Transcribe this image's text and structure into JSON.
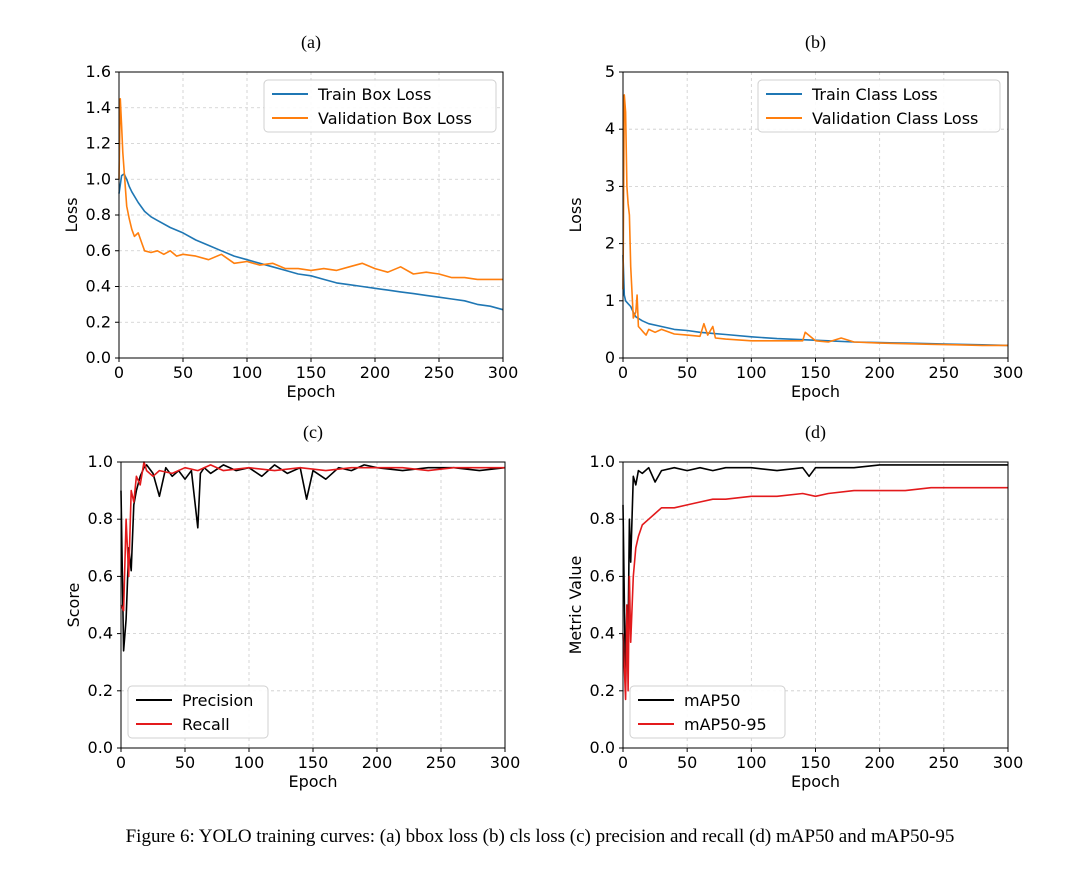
{
  "caption": "Figure 6: YOLO training curves: (a) bbox loss (b) cls loss (c) precision and recall (d) mAP50 and mAP50-95",
  "colors": {
    "blue": "#1f77b4",
    "orange": "#ff7f0e",
    "black": "#000000",
    "red": "#e31a1c",
    "grid": "#cccccc"
  },
  "chart_data": [
    {
      "id": "a",
      "type": "line",
      "title": "(a)",
      "xlabel": "Epoch",
      "ylabel": "Loss",
      "xlim": [
        0,
        300
      ],
      "ylim": [
        0,
        1.6
      ],
      "xticks": [
        0,
        50,
        100,
        150,
        200,
        250,
        300
      ],
      "xtick_labels": [
        "0",
        "50",
        "100",
        "150",
        "200",
        "250",
        "300"
      ],
      "yticks": [
        0,
        0.2,
        0.4,
        0.6,
        0.8,
        1.0,
        1.2,
        1.4,
        1.6
      ],
      "ytick_labels": [
        "0.0",
        "0.2",
        "0.4",
        "0.6",
        "0.8",
        "1.0",
        "1.2",
        "1.4",
        "1.6"
      ],
      "grid": true,
      "legend_position": "top-right",
      "series": [
        {
          "name": "Train Box Loss",
          "color": "blue",
          "x": [
            0,
            2,
            4,
            6,
            8,
            10,
            15,
            20,
            25,
            30,
            40,
            50,
            60,
            70,
            80,
            90,
            100,
            110,
            120,
            130,
            140,
            150,
            160,
            170,
            180,
            190,
            200,
            210,
            220,
            230,
            240,
            250,
            260,
            270,
            280,
            290,
            300
          ],
          "values": [
            0.92,
            1.02,
            1.03,
            1.0,
            0.96,
            0.93,
            0.87,
            0.82,
            0.79,
            0.77,
            0.73,
            0.7,
            0.66,
            0.63,
            0.6,
            0.57,
            0.55,
            0.53,
            0.51,
            0.49,
            0.47,
            0.46,
            0.44,
            0.42,
            0.41,
            0.4,
            0.39,
            0.38,
            0.37,
            0.36,
            0.35,
            0.34,
            0.33,
            0.32,
            0.3,
            0.29,
            0.27
          ]
        },
        {
          "name": "Validation Box Loss",
          "color": "orange",
          "x": [
            0,
            1,
            2,
            3,
            4,
            5,
            6,
            8,
            10,
            12,
            15,
            18,
            20,
            25,
            30,
            35,
            40,
            45,
            50,
            60,
            70,
            80,
            90,
            100,
            110,
            120,
            130,
            140,
            150,
            160,
            170,
            180,
            190,
            200,
            210,
            220,
            230,
            240,
            250,
            260,
            270,
            280,
            290,
            300
          ],
          "values": [
            1.0,
            1.45,
            1.3,
            1.15,
            1.05,
            0.95,
            0.85,
            0.78,
            0.72,
            0.68,
            0.7,
            0.64,
            0.6,
            0.59,
            0.6,
            0.58,
            0.6,
            0.57,
            0.58,
            0.57,
            0.55,
            0.58,
            0.53,
            0.54,
            0.52,
            0.53,
            0.5,
            0.5,
            0.49,
            0.5,
            0.49,
            0.51,
            0.53,
            0.5,
            0.48,
            0.51,
            0.47,
            0.48,
            0.47,
            0.45,
            0.45,
            0.44,
            0.44,
            0.44
          ]
        }
      ]
    },
    {
      "id": "b",
      "type": "line",
      "title": "(b)",
      "xlabel": "Epoch",
      "ylabel": "Loss",
      "xlim": [
        0,
        300
      ],
      "ylim": [
        0,
        5
      ],
      "xticks": [
        0,
        50,
        100,
        150,
        200,
        250,
        300
      ],
      "xtick_labels": [
        "0",
        "50",
        "100",
        "150",
        "200",
        "250",
        "300"
      ],
      "yticks": [
        0,
        1,
        2,
        3,
        4,
        5
      ],
      "ytick_labels": [
        "0",
        "1",
        "2",
        "3",
        "4",
        "5"
      ],
      "grid": true,
      "legend_position": "top-right",
      "series": [
        {
          "name": "Train Class Loss",
          "color": "blue",
          "x": [
            0,
            1,
            2,
            4,
            6,
            8,
            10,
            15,
            20,
            30,
            40,
            50,
            60,
            70,
            80,
            100,
            120,
            140,
            160,
            180,
            200,
            220,
            240,
            260,
            280,
            300
          ],
          "values": [
            1.8,
            1.1,
            1.0,
            0.95,
            0.9,
            0.8,
            0.72,
            0.65,
            0.6,
            0.55,
            0.5,
            0.48,
            0.45,
            0.43,
            0.41,
            0.37,
            0.34,
            0.32,
            0.3,
            0.28,
            0.27,
            0.26,
            0.25,
            0.24,
            0.23,
            0.22
          ]
        },
        {
          "name": "Validation Class Loss",
          "color": "orange",
          "x": [
            0,
            1,
            2,
            3,
            4,
            5,
            6,
            8,
            10,
            11,
            12,
            14,
            16,
            18,
            20,
            25,
            30,
            40,
            50,
            60,
            63,
            66,
            70,
            72,
            80,
            100,
            120,
            140,
            142,
            150,
            160,
            170,
            180,
            200,
            220,
            240,
            260,
            280,
            300
          ],
          "values": [
            1.2,
            4.6,
            4.3,
            3.0,
            2.7,
            2.5,
            1.6,
            0.7,
            0.8,
            1.1,
            0.55,
            0.5,
            0.45,
            0.4,
            0.5,
            0.45,
            0.5,
            0.42,
            0.4,
            0.38,
            0.6,
            0.4,
            0.55,
            0.35,
            0.33,
            0.3,
            0.3,
            0.3,
            0.45,
            0.3,
            0.28,
            0.35,
            0.28,
            0.26,
            0.25,
            0.24,
            0.23,
            0.22,
            0.22
          ]
        }
      ]
    },
    {
      "id": "c",
      "type": "line",
      "title": "(c)",
      "xlabel": "Epoch",
      "ylabel": "Score",
      "xlim": [
        0,
        300
      ],
      "ylim": [
        0,
        1.0
      ],
      "xticks": [
        0,
        50,
        100,
        150,
        200,
        250,
        300
      ],
      "xtick_labels": [
        "0",
        "50",
        "100",
        "150",
        "200",
        "250",
        "300"
      ],
      "yticks": [
        0,
        0.2,
        0.4,
        0.6,
        0.8,
        1.0
      ],
      "ytick_labels": [
        "0.0",
        "0.2",
        "0.4",
        "0.6",
        "0.8",
        "1.0"
      ],
      "grid": true,
      "legend_position": "bottom-left",
      "series": [
        {
          "name": "Precision",
          "color": "black",
          "x": [
            0,
            2,
            4,
            6,
            8,
            10,
            12,
            15,
            18,
            20,
            25,
            30,
            35,
            40,
            45,
            50,
            55,
            60,
            62,
            65,
            70,
            80,
            90,
            100,
            110,
            120,
            130,
            140,
            145,
            150,
            160,
            170,
            180,
            190,
            200,
            220,
            240,
            260,
            280,
            300
          ],
          "values": [
            0.9,
            0.34,
            0.45,
            0.7,
            0.62,
            0.85,
            0.9,
            0.95,
            0.98,
            0.99,
            0.96,
            0.88,
            0.98,
            0.95,
            0.97,
            0.94,
            0.97,
            0.77,
            0.96,
            0.98,
            0.96,
            0.99,
            0.97,
            0.98,
            0.95,
            0.99,
            0.96,
            0.98,
            0.87,
            0.97,
            0.94,
            0.98,
            0.97,
            0.99,
            0.98,
            0.97,
            0.98,
            0.98,
            0.97,
            0.98
          ]
        },
        {
          "name": "Recall",
          "color": "red",
          "x": [
            0,
            2,
            4,
            6,
            8,
            10,
            12,
            15,
            18,
            20,
            25,
            30,
            40,
            50,
            60,
            70,
            80,
            100,
            120,
            140,
            160,
            180,
            200,
            220,
            240,
            260,
            280,
            300
          ],
          "values": [
            0.5,
            0.48,
            0.8,
            0.6,
            0.9,
            0.86,
            0.95,
            0.92,
            1.0,
            0.97,
            0.95,
            0.97,
            0.96,
            0.98,
            0.97,
            0.99,
            0.97,
            0.98,
            0.97,
            0.98,
            0.97,
            0.98,
            0.98,
            0.98,
            0.97,
            0.98,
            0.98,
            0.98
          ]
        }
      ]
    },
    {
      "id": "d",
      "type": "line",
      "title": "(d)",
      "xlabel": "Epoch",
      "ylabel": "Metric Value",
      "xlim": [
        0,
        300
      ],
      "ylim": [
        0,
        1.0
      ],
      "xticks": [
        0,
        50,
        100,
        150,
        200,
        250,
        300
      ],
      "xtick_labels": [
        "0",
        "50",
        "100",
        "150",
        "200",
        "250",
        "300"
      ],
      "yticks": [
        0,
        0.2,
        0.4,
        0.6,
        0.8,
        1.0
      ],
      "ytick_labels": [
        "0.0",
        "0.2",
        "0.4",
        "0.6",
        "0.8",
        "1.0"
      ],
      "grid": true,
      "legend_position": "bottom-left",
      "series": [
        {
          "name": "mAP50",
          "color": "black",
          "x": [
            0,
            2,
            3,
            4,
            5,
            6,
            8,
            10,
            12,
            15,
            20,
            25,
            30,
            40,
            50,
            60,
            70,
            80,
            100,
            120,
            140,
            145,
            150,
            160,
            180,
            200,
            220,
            240,
            260,
            280,
            300
          ],
          "values": [
            0.85,
            0.2,
            0.5,
            0.4,
            0.8,
            0.65,
            0.95,
            0.92,
            0.97,
            0.96,
            0.98,
            0.93,
            0.97,
            0.98,
            0.97,
            0.98,
            0.97,
            0.98,
            0.98,
            0.97,
            0.98,
            0.95,
            0.98,
            0.98,
            0.98,
            0.99,
            0.99,
            0.99,
            0.99,
            0.99,
            0.99
          ]
        },
        {
          "name": "mAP50-95",
          "color": "red",
          "x": [
            0,
            2,
            3,
            4,
            5,
            6,
            8,
            10,
            12,
            15,
            20,
            25,
            30,
            40,
            50,
            60,
            70,
            80,
            100,
            120,
            140,
            150,
            160,
            180,
            200,
            220,
            240,
            260,
            280,
            300
          ],
          "values": [
            0.4,
            0.17,
            0.5,
            0.2,
            0.6,
            0.37,
            0.6,
            0.7,
            0.74,
            0.78,
            0.8,
            0.82,
            0.84,
            0.84,
            0.85,
            0.86,
            0.87,
            0.87,
            0.88,
            0.88,
            0.89,
            0.88,
            0.89,
            0.9,
            0.9,
            0.9,
            0.91,
            0.91,
            0.91,
            0.91
          ]
        }
      ]
    }
  ]
}
